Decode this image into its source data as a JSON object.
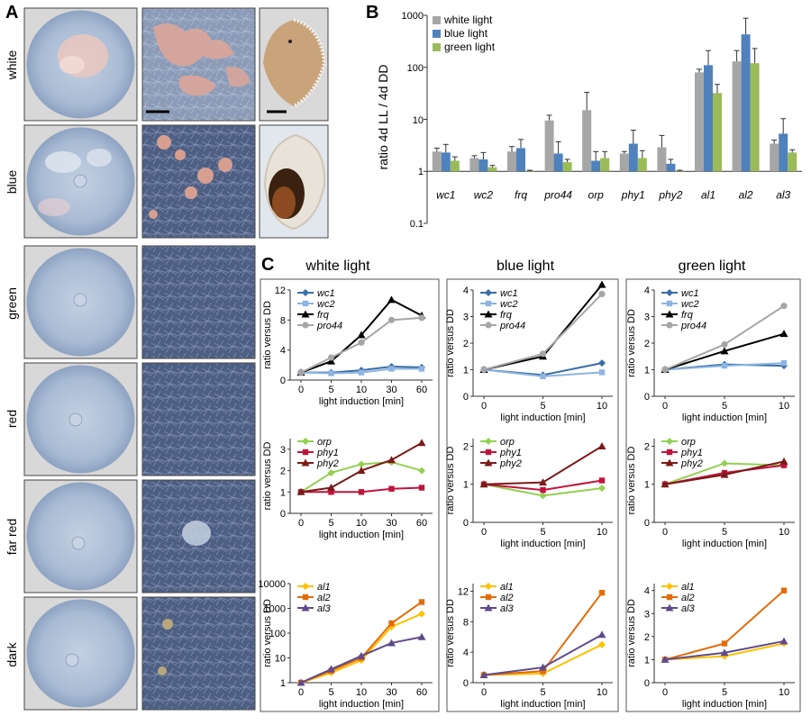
{
  "panel_a": {
    "letter": "A",
    "rows": [
      "white",
      "blue",
      "green",
      "red",
      "far red",
      "dark"
    ]
  },
  "panel_b": {
    "letter": "B",
    "ylabel": "ratio 4d LL / 4d DD",
    "yticks": [
      "0.1",
      "1",
      "10",
      "100",
      "1000"
    ],
    "legend": [
      "white light",
      "blue light",
      "green light"
    ],
    "colors": [
      "#a6a6a6",
      "#4f81bd",
      "#9bbb59"
    ]
  },
  "panel_c": {
    "letter": "C",
    "column_titles": [
      "white light",
      "blue light",
      "green light"
    ],
    "ylabel": "ratio versus DD",
    "xlabel": "light induction [min]"
  },
  "chart_data": [
    {
      "type": "bar",
      "id": "B",
      "categories": [
        "wc1",
        "wc2",
        "frq",
        "pro44",
        "orp",
        "phy1",
        "phy2",
        "al1",
        "al2",
        "al3"
      ],
      "ylabel": "ratio 4d LL / 4d DD",
      "yscale": "log",
      "ylim": [
        0.1,
        1000
      ],
      "legend_position": "top-left",
      "series": [
        {
          "name": "white light",
          "values": [
            2.4,
            1.8,
            2.4,
            9.5,
            15,
            2.2,
            2.9,
            80,
            130,
            3.4
          ],
          "errors": [
            0.4,
            0.2,
            0.6,
            2.5,
            18,
            0.2,
            2.0,
            12,
            80,
            0.6
          ]
        },
        {
          "name": "blue light",
          "values": [
            2.3,
            1.7,
            2.8,
            2.2,
            1.6,
            3.4,
            1.4,
            110,
            430,
            5.3
          ],
          "errors": [
            1.0,
            0.6,
            1.3,
            1.5,
            0.8,
            2.8,
            0.3,
            100,
            450,
            5.0
          ]
        },
        {
          "name": "green light",
          "values": [
            1.6,
            1.2,
            1.0,
            1.5,
            1.8,
            1.8,
            1.0,
            32,
            120,
            2.3
          ],
          "errors": [
            0.3,
            0.1,
            0.05,
            0.2,
            0.6,
            0.7,
            0.05,
            15,
            110,
            0.3
          ]
        }
      ]
    },
    {
      "type": "line",
      "id": "C-white-1",
      "x": [
        "0",
        "5",
        "10",
        "30",
        "60"
      ],
      "ylabel": "ratio versus DD",
      "xlabel": "light induction [min]",
      "ylim": [
        0,
        12
      ],
      "yticks": [
        0,
        4,
        8,
        12
      ],
      "series": [
        {
          "name": "wc1",
          "values": [
            1.0,
            1.0,
            1.3,
            1.8,
            1.7
          ]
        },
        {
          "name": "wc2",
          "values": [
            1.0,
            0.9,
            1.0,
            1.5,
            1.5
          ]
        },
        {
          "name": "frq",
          "values": [
            1.0,
            2.5,
            6.0,
            10.7,
            8.6
          ]
        },
        {
          "name": "pro44",
          "values": [
            1.0,
            3.0,
            5.0,
            8.0,
            8.3
          ]
        }
      ]
    },
    {
      "type": "line",
      "id": "C-blue-1",
      "x": [
        "0",
        "5",
        "10"
      ],
      "ylabel": "ratio versus DD",
      "xlabel": "light induction [min]",
      "ylim": [
        0,
        4
      ],
      "yticks": [
        0,
        1,
        2,
        3,
        4
      ],
      "series": [
        {
          "name": "wc1",
          "values": [
            1.0,
            0.8,
            1.25
          ]
        },
        {
          "name": "wc2",
          "values": [
            1.0,
            0.75,
            0.9
          ]
        },
        {
          "name": "frq",
          "values": [
            1.0,
            1.5,
            4.2
          ]
        },
        {
          "name": "pro44",
          "values": [
            1.0,
            1.6,
            3.85
          ]
        }
      ]
    },
    {
      "type": "line",
      "id": "C-green-1",
      "x": [
        "0",
        "5",
        "10"
      ],
      "ylabel": "ratio versus DD",
      "xlabel": "light induction [min]",
      "ylim": [
        0,
        4
      ],
      "yticks": [
        0,
        1,
        2,
        3,
        4
      ],
      "series": [
        {
          "name": "wc1",
          "values": [
            1.0,
            1.2,
            1.15
          ]
        },
        {
          "name": "wc2",
          "values": [
            1.0,
            1.15,
            1.25
          ]
        },
        {
          "name": "frq",
          "values": [
            1.0,
            1.7,
            2.35
          ]
        },
        {
          "name": "pro44",
          "values": [
            1.0,
            1.95,
            3.4
          ]
        }
      ]
    },
    {
      "type": "line",
      "id": "C-white-2",
      "x": [
        "0",
        "5",
        "10",
        "30",
        "60"
      ],
      "ylabel": "ratio versus DD",
      "xlabel": "light induction [min]",
      "ylim": [
        0,
        3.5
      ],
      "yticks": [
        0,
        1,
        2,
        3
      ],
      "series": [
        {
          "name": "orp",
          "values": [
            1.0,
            1.9,
            2.3,
            2.4,
            2.0
          ]
        },
        {
          "name": "phy1",
          "values": [
            1.0,
            1.0,
            1.0,
            1.15,
            1.2
          ]
        },
        {
          "name": "phy2",
          "values": [
            1.0,
            1.2,
            2.0,
            2.5,
            3.3
          ]
        }
      ]
    },
    {
      "type": "line",
      "id": "C-blue-2",
      "x": [
        "0",
        "5",
        "10"
      ],
      "ylabel": "ratio versus DD",
      "xlabel": "light induction [min]",
      "ylim": [
        0,
        2.2
      ],
      "yticks": [
        0,
        1,
        2
      ],
      "series": [
        {
          "name": "orp",
          "values": [
            1.0,
            0.7,
            0.9
          ]
        },
        {
          "name": "phy1",
          "values": [
            1.0,
            0.85,
            1.1
          ]
        },
        {
          "name": "phy2",
          "values": [
            1.0,
            1.05,
            2.0
          ]
        }
      ]
    },
    {
      "type": "line",
      "id": "C-green-2",
      "x": [
        "0",
        "5",
        "10"
      ],
      "ylabel": "ratio versus DD",
      "xlabel": "light induction [min]",
      "ylim": [
        0,
        2.2
      ],
      "yticks": [
        0,
        1,
        2
      ],
      "series": [
        {
          "name": "orp",
          "values": [
            1.0,
            1.55,
            1.5
          ]
        },
        {
          "name": "phy1",
          "values": [
            1.0,
            1.3,
            1.5
          ]
        },
        {
          "name": "phy2",
          "values": [
            1.0,
            1.25,
            1.6
          ]
        }
      ]
    },
    {
      "type": "line",
      "id": "C-white-3",
      "x": [
        "0",
        "5",
        "10",
        "30",
        "60"
      ],
      "yscale": "log",
      "ylabel": "ratio versus DD",
      "xlabel": "light induction [min]",
      "ylim": [
        1,
        10000
      ],
      "yticks": [
        1,
        10,
        100,
        1000,
        10000
      ],
      "series": [
        {
          "name": "al1",
          "values": [
            1,
            2.5,
            8,
            180,
            600
          ]
        },
        {
          "name": "al2",
          "values": [
            1,
            3,
            10,
            250,
            1800
          ]
        },
        {
          "name": "al3",
          "values": [
            1,
            3.5,
            12,
            40,
            70
          ]
        }
      ]
    },
    {
      "type": "line",
      "id": "C-blue-3",
      "x": [
        "0",
        "5",
        "10"
      ],
      "ylabel": "ratio versus DD",
      "xlabel": "light induction [min]",
      "ylim": [
        0,
        13
      ],
      "yticks": [
        0,
        4,
        8,
        12
      ],
      "series": [
        {
          "name": "al1",
          "values": [
            1,
            1.2,
            5
          ]
        },
        {
          "name": "al2",
          "values": [
            1,
            1.5,
            11.8
          ]
        },
        {
          "name": "al3",
          "values": [
            1,
            2,
            6.3
          ]
        }
      ]
    },
    {
      "type": "line",
      "id": "C-green-3",
      "x": [
        "0",
        "5",
        "10"
      ],
      "ylabel": "ratio versus DD",
      "xlabel": "light induction [min]",
      "ylim": [
        0,
        4.3
      ],
      "yticks": [
        0,
        1,
        2,
        3,
        4
      ],
      "series": [
        {
          "name": "al1",
          "values": [
            1,
            1.15,
            1.7
          ]
        },
        {
          "name": "al2",
          "values": [
            1,
            1.7,
            4.0
          ]
        },
        {
          "name": "al3",
          "values": [
            1,
            1.3,
            1.8
          ]
        }
      ]
    }
  ],
  "series_styles": {
    "wc1": {
      "color": "#3a6ea5",
      "marker": "diamond"
    },
    "wc2": {
      "color": "#8db4e2",
      "marker": "square"
    },
    "frq": {
      "color": "#000000",
      "marker": "triangle"
    },
    "pro44": {
      "color": "#a6a6a6",
      "marker": "circle"
    },
    "orp": {
      "color": "#92d050",
      "marker": "diamond"
    },
    "phy1": {
      "color": "#c0143c",
      "marker": "square"
    },
    "phy2": {
      "color": "#7b1a1a",
      "marker": "triangle"
    },
    "al1": {
      "color": "#ffc000",
      "marker": "diamond"
    },
    "al2": {
      "color": "#e36c09",
      "marker": "square"
    },
    "al3": {
      "color": "#5f4b8b",
      "marker": "triangle"
    }
  }
}
